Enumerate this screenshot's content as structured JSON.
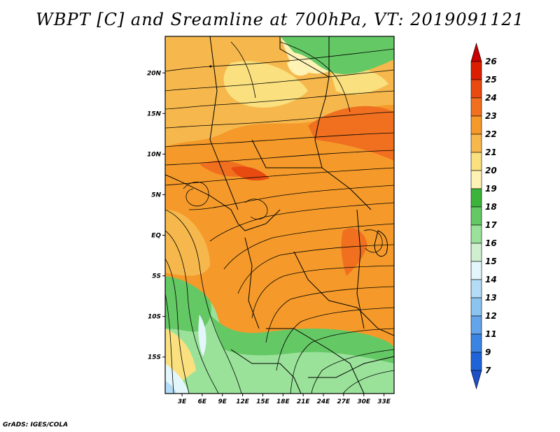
{
  "title": "WBPT [C] and Sreamline at 700hPa, VT: 2019091121",
  "footer": "GrADS: IGES/COLA",
  "map": {
    "lat_labels": [
      "20N",
      "15N",
      "10N",
      "5N",
      "EQ",
      "5S",
      "10S",
      "15S"
    ],
    "lat_values": [
      20,
      15,
      10,
      5,
      0,
      -5,
      -10,
      -15
    ],
    "lon_labels": [
      "3E",
      "6E",
      "9E",
      "12E",
      "15E",
      "18E",
      "21E",
      "24E",
      "27E",
      "30E",
      "33E"
    ],
    "lon_values": [
      3,
      6,
      9,
      12,
      15,
      18,
      21,
      24,
      27,
      30,
      33
    ],
    "lon_range": [
      0.5,
      34.5
    ],
    "lat_range": [
      -19.5,
      24.5
    ]
  },
  "colorbar": {
    "labels": [
      "26",
      "25",
      "24",
      "23",
      "22",
      "21",
      "20",
      "19",
      "18",
      "17",
      "16",
      "15",
      "14",
      "13",
      "12",
      "11",
      "9",
      "7"
    ],
    "colors": [
      "#c80000",
      "#dc1e00",
      "#e84a10",
      "#f07020",
      "#f59a2a",
      "#f6b84c",
      "#fae07e",
      "#fef2b4",
      "#3cb43c",
      "#64c864",
      "#9ae29a",
      "#cff0cf",
      "#e2f6fb",
      "#b4dcf6",
      "#8cc4f0",
      "#64a4ea",
      "#3c84e4",
      "#1e64d8",
      "#1e50c8"
    ]
  }
}
